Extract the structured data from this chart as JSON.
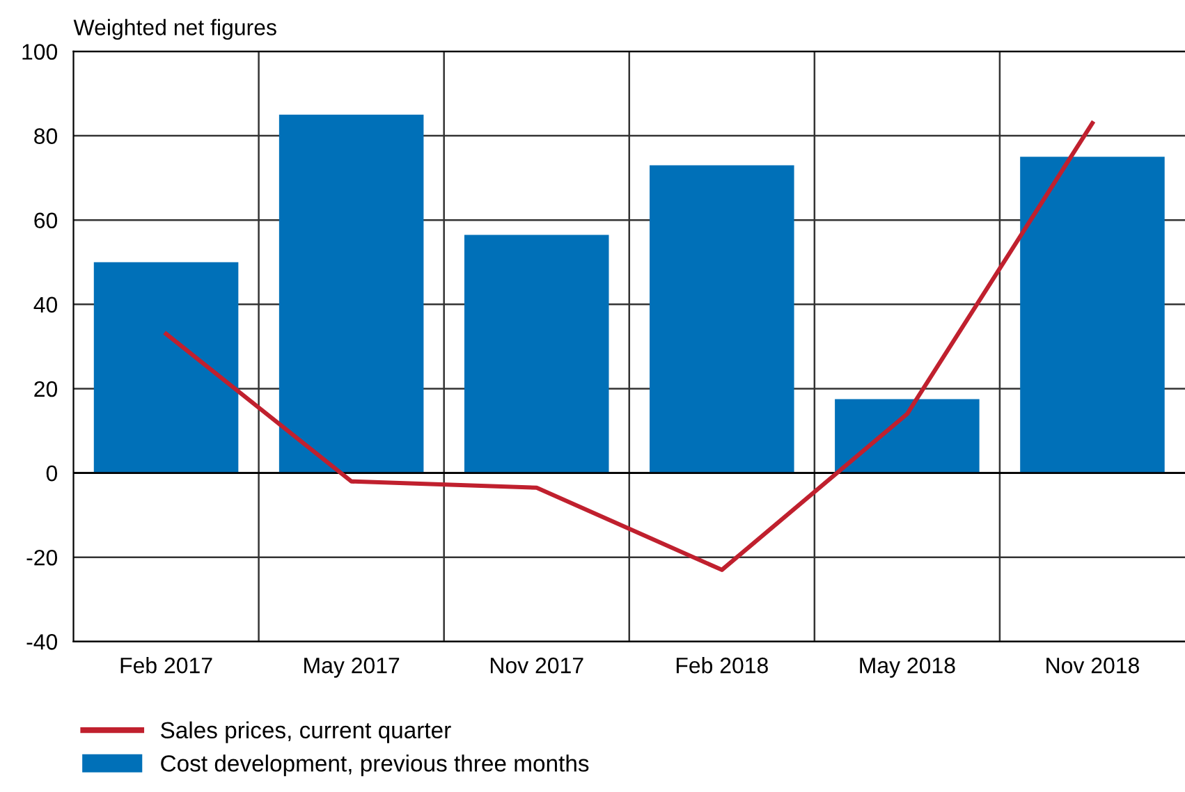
{
  "chart_data": {
    "type": "bar",
    "ylabel": "Weighted net figures",
    "categories": [
      "Feb 2017",
      "May 2017",
      "Nov 2017",
      "Feb 2018",
      "May 2018",
      "Nov 2018"
    ],
    "series": [
      {
        "name": "Sales prices, current quarter",
        "type": "line",
        "color": "#c0202e",
        "values": [
          33,
          -2,
          -3.5,
          -23,
          14,
          83
        ]
      },
      {
        "name": "Cost development, previous three months",
        "color": "#0070b8",
        "values": [
          50,
          85,
          56.5,
          73,
          17.5,
          75
        ]
      }
    ],
    "ylim": [
      -40,
      100
    ],
    "yticks": [
      -40,
      -20,
      0,
      20,
      40,
      60,
      80,
      100
    ],
    "grid": true,
    "legend": "bottom",
    "marker": "none",
    "line_style": "solid"
  }
}
